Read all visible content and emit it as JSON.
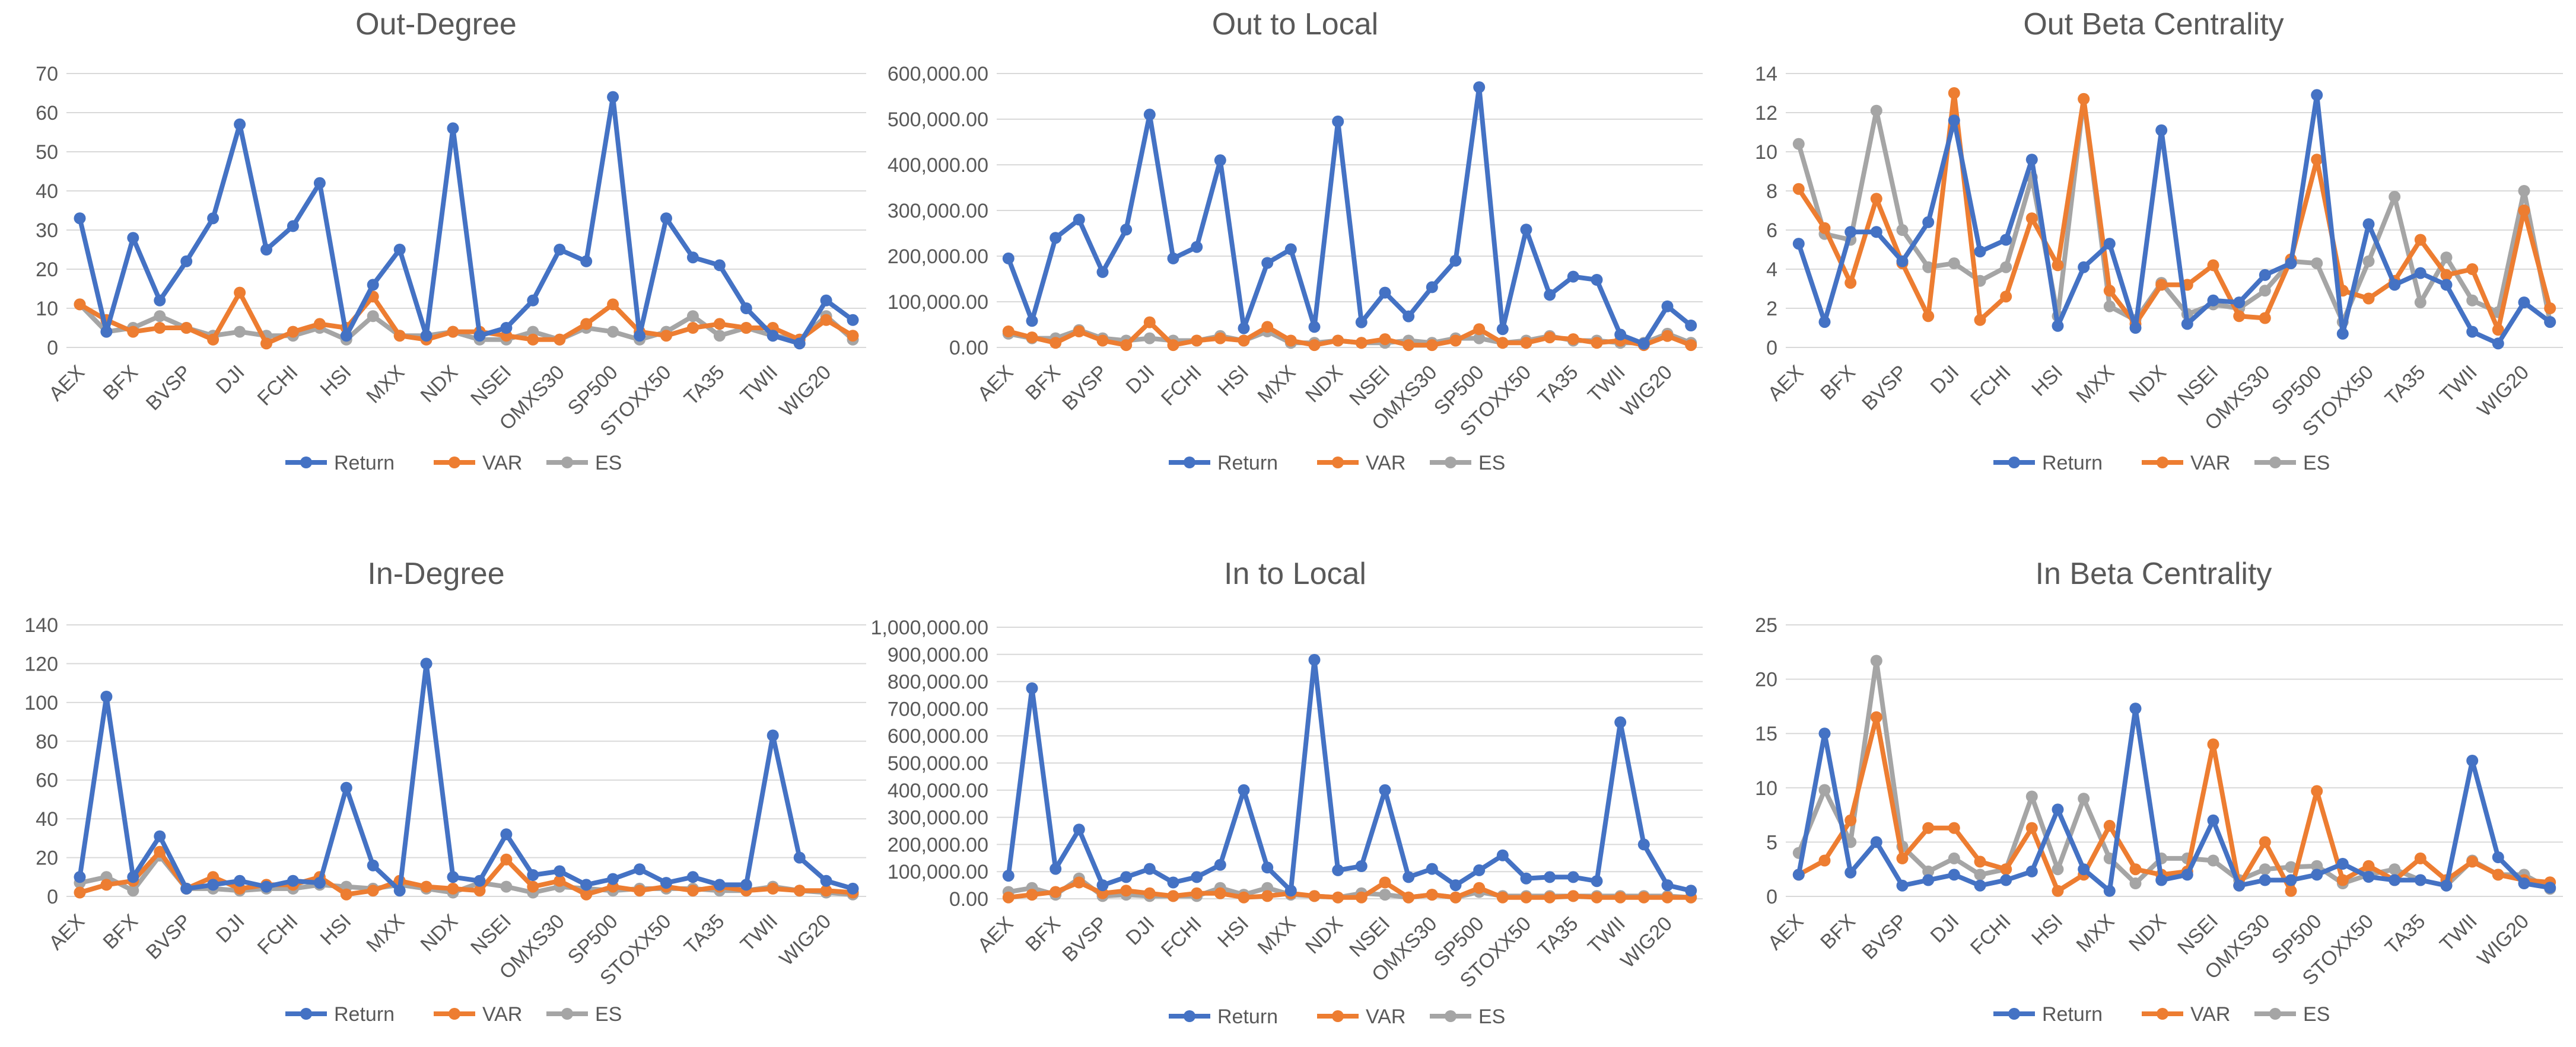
{
  "colors": {
    "Return": "#4472c4",
    "VAR": "#ed7d31",
    "ES": "#a5a5a5"
  },
  "chart_data": [
    {
      "type": "line",
      "title": "Out-Degree",
      "yticks": [
        "0",
        "10",
        "20",
        "30",
        "40",
        "50",
        "60",
        "70"
      ],
      "ylim": [
        0,
        70
      ],
      "xlabels": [
        "AEX",
        "BFX",
        "BVSP",
        "DJI",
        "FCHI",
        "HSI",
        "MXX",
        "NDX",
        "NSEI",
        "OMXS30",
        "SP500",
        "STOXX50",
        "TA35",
        "TWII",
        "WIG20"
      ],
      "n_points": 30,
      "legend": [
        "Return",
        "VAR",
        "ES"
      ],
      "series": [
        {
          "name": "Return",
          "values": [
            33,
            4,
            28,
            12,
            22,
            33,
            57,
            25,
            31,
            42,
            3,
            16,
            25,
            3,
            56,
            3,
            5,
            12,
            25,
            22,
            64,
            3,
            33,
            23,
            21,
            10,
            3,
            1,
            12,
            7
          ]
        },
        {
          "name": "VAR",
          "values": [
            11,
            7,
            4,
            5,
            5,
            2,
            14,
            1,
            4,
            6,
            5,
            13,
            3,
            2,
            4,
            4,
            3,
            2,
            2,
            6,
            11,
            4,
            3,
            5,
            6,
            5,
            5,
            2,
            7,
            3
          ]
        },
        {
          "name": "ES",
          "values": [
            11,
            4,
            5,
            8,
            5,
            3,
            4,
            3,
            3,
            5,
            2,
            8,
            3,
            3,
            4,
            2,
            2,
            4,
            2,
            5,
            4,
            2,
            4,
            8,
            3,
            5,
            3,
            2,
            8,
            2
          ]
        }
      ]
    },
    {
      "type": "line",
      "title": "Out to Local",
      "yticks": [
        "0.00",
        "100,000.00",
        "200,000.00",
        "300,000.00",
        "400,000.00",
        "500,000.00",
        "600,000.00"
      ],
      "ylim": [
        0,
        600000
      ],
      "xlabels": [
        "AEX",
        "BFX",
        "BVSP",
        "DJI",
        "FCHI",
        "HSI",
        "MXX",
        "NDX",
        "NSEI",
        "OMXS30",
        "SP500",
        "STOXX50",
        "TA35",
        "TWII",
        "WIG20"
      ],
      "n_points": 30,
      "legend": [
        "Return",
        "VAR",
        "ES"
      ],
      "series": [
        {
          "name": "Return",
          "values": [
            195000,
            58000,
            240000,
            280000,
            165000,
            258000,
            510000,
            195000,
            220000,
            410000,
            42000,
            185000,
            215000,
            45000,
            495000,
            55000,
            120000,
            68000,
            132000,
            190000,
            570000,
            40000,
            258000,
            115000,
            155000,
            148000,
            28000,
            8000,
            90000,
            48000
          ]
        },
        {
          "name": "VAR",
          "values": [
            35000,
            22000,
            10000,
            35000,
            15000,
            5000,
            55000,
            5000,
            15000,
            20000,
            15000,
            45000,
            15000,
            5000,
            15000,
            10000,
            18000,
            5000,
            5000,
            15000,
            40000,
            10000,
            10000,
            22000,
            18000,
            10000,
            15000,
            5000,
            25000,
            5000
          ]
        },
        {
          "name": "ES",
          "values": [
            30000,
            20000,
            20000,
            38000,
            20000,
            15000,
            20000,
            15000,
            15000,
            25000,
            15000,
            35000,
            10000,
            10000,
            15000,
            10000,
            10000,
            15000,
            10000,
            20000,
            20000,
            10000,
            15000,
            25000,
            15000,
            15000,
            10000,
            10000,
            30000,
            10000
          ]
        }
      ]
    },
    {
      "type": "line",
      "title": "Out Beta Centrality",
      "yticks": [
        "0",
        "2",
        "4",
        "6",
        "8",
        "10",
        "12",
        "14"
      ],
      "ylim": [
        0,
        14
      ],
      "xlabels": [
        "AEX",
        "BFX",
        "BVSP",
        "DJI",
        "FCHI",
        "HSI",
        "MXX",
        "NDX",
        "NSEI",
        "OMXS30",
        "SP500",
        "STOXX50",
        "TA35",
        "TWII",
        "WIG20"
      ],
      "n_points": 30,
      "legend": [
        "Return",
        "VAR",
        "ES"
      ],
      "series": [
        {
          "name": "Return",
          "values": [
            5.3,
            1.3,
            5.9,
            5.9,
            4.4,
            6.4,
            11.6,
            4.9,
            5.5,
            9.6,
            1.1,
            4.1,
            5.3,
            1.0,
            11.1,
            1.2,
            2.4,
            2.3,
            3.7,
            4.3,
            12.9,
            0.7,
            6.3,
            3.2,
            3.8,
            3.2,
            0.8,
            0.2,
            2.3,
            1.3
          ]
        },
        {
          "name": "VAR",
          "values": [
            8.1,
            6.1,
            3.3,
            7.6,
            4.3,
            1.6,
            13.0,
            1.4,
            2.6,
            6.6,
            4.2,
            12.7,
            2.9,
            1.2,
            3.2,
            3.2,
            4.2,
            1.6,
            1.5,
            4.5,
            9.6,
            2.9,
            2.5,
            3.4,
            5.5,
            3.7,
            4.0,
            0.9,
            7.0,
            2.0
          ]
        },
        {
          "name": "ES",
          "values": [
            10.4,
            5.8,
            5.5,
            12.1,
            6.0,
            4.1,
            4.3,
            3.4,
            4.1,
            8.7,
            1.6,
            12.7,
            2.1,
            1.4,
            3.3,
            1.7,
            2.2,
            2.0,
            2.9,
            4.4,
            4.3,
            1.3,
            4.4,
            7.7,
            2.3,
            4.6,
            2.4,
            1.8,
            8.0,
            1.3
          ]
        }
      ]
    },
    {
      "type": "line",
      "title": "In-Degree",
      "yticks": [
        "0",
        "20",
        "40",
        "60",
        "80",
        "100",
        "120",
        "140"
      ],
      "ylim": [
        0,
        140
      ],
      "xlabels": [
        "AEX",
        "BFX",
        "BVSP",
        "DJI",
        "FCHI",
        "HSI",
        "MXX",
        "NDX",
        "NSEI",
        "OMXS30",
        "SP500",
        "STOXX50",
        "TA35",
        "TWII",
        "WIG20"
      ],
      "n_points": 30,
      "legend": [
        "Return",
        "VAR",
        "ES"
      ],
      "series": [
        {
          "name": "Return",
          "values": [
            10,
            103,
            10,
            31,
            4,
            6,
            8,
            5,
            8,
            7,
            56,
            16,
            3,
            120,
            10,
            8,
            32,
            11,
            13,
            6,
            9,
            14,
            7,
            10,
            6,
            6,
            83,
            20,
            8,
            4
          ]
        },
        {
          "name": "VAR",
          "values": [
            2,
            6,
            8,
            23,
            4,
            10,
            4,
            6,
            6,
            10,
            1,
            3,
            8,
            5,
            4,
            3,
            19,
            5,
            8,
            1,
            5,
            3,
            5,
            3,
            5,
            3,
            4,
            3,
            3,
            2
          ]
        },
        {
          "name": "ES",
          "values": [
            7,
            10,
            3,
            21,
            4,
            4,
            3,
            4,
            4,
            6,
            5,
            4,
            6,
            4,
            2,
            7,
            5,
            2,
            5,
            4,
            3,
            4,
            4,
            4,
            3,
            3,
            5,
            3,
            2,
            1
          ]
        }
      ]
    },
    {
      "type": "line",
      "title": "In to Local",
      "yticks": [
        "0.00",
        "100,000.00",
        "200,000.00",
        "300,000.00",
        "400,000.00",
        "500,000.00",
        "600,000.00",
        "700,000.00",
        "800,000.00",
        "900,000.00",
        "1,000,000.00"
      ],
      "ylim": [
        0,
        1000000
      ],
      "xlabels": [
        "AEX",
        "BFX",
        "BVSP",
        "DJI",
        "FCHI",
        "HSI",
        "MXX",
        "NDX",
        "NSEI",
        "OMXS30",
        "SP500",
        "STOXX50",
        "TA35",
        "TWII",
        "WIG20"
      ],
      "n_points": 30,
      "legend": [
        "Return",
        "VAR",
        "ES"
      ],
      "series": [
        {
          "name": "Return",
          "values": [
            85000,
            775000,
            110000,
            255000,
            50000,
            80000,
            110000,
            60000,
            80000,
            125000,
            400000,
            115000,
            30000,
            880000,
            105000,
            120000,
            400000,
            80000,
            110000,
            50000,
            105000,
            160000,
            75000,
            80000,
            80000,
            65000,
            650000,
            200000,
            50000,
            30000
          ]
        },
        {
          "name": "VAR",
          "values": [
            5000,
            15000,
            25000,
            60000,
            20000,
            30000,
            20000,
            10000,
            20000,
            20000,
            5000,
            10000,
            20000,
            10000,
            5000,
            5000,
            60000,
            5000,
            15000,
            5000,
            40000,
            5000,
            5000,
            5000,
            10000,
            5000,
            5000,
            5000,
            5000,
            5000
          ]
        },
        {
          "name": "ES",
          "values": [
            25000,
            40000,
            15000,
            75000,
            10000,
            15000,
            10000,
            10000,
            10000,
            40000,
            15000,
            40000,
            15000,
            10000,
            5000,
            20000,
            15000,
            5000,
            15000,
            5000,
            25000,
            10000,
            10000,
            10000,
            10000,
            10000,
            10000,
            10000,
            10000,
            5000
          ]
        }
      ]
    },
    {
      "type": "line",
      "title": "In Beta Centrality",
      "yticks": [
        "0",
        "5",
        "10",
        "15",
        "20",
        "25"
      ],
      "ylim": [
        0,
        25
      ],
      "xlabels": [
        "AEX",
        "BFX",
        "BVSP",
        "DJI",
        "FCHI",
        "HSI",
        "MXX",
        "NDX",
        "NSEI",
        "OMXS30",
        "SP500",
        "STOXX50",
        "TA35",
        "TWII",
        "WIG20"
      ],
      "n_points": 30,
      "legend": [
        "Return",
        "VAR",
        "ES"
      ],
      "series": [
        {
          "name": "Return",
          "values": [
            2.0,
            15.0,
            2.2,
            5.0,
            1.0,
            1.5,
            2.0,
            1.0,
            1.5,
            2.3,
            8.0,
            2.5,
            0.5,
            17.3,
            1.5,
            2.0,
            7.0,
            1.0,
            1.5,
            1.5,
            2.0,
            3.0,
            1.8,
            1.5,
            1.5,
            1.0,
            12.5,
            3.6,
            1.2,
            0.8
          ]
        },
        {
          "name": "VAR",
          "values": [
            2.0,
            3.3,
            7.0,
            16.5,
            3.5,
            6.3,
            6.3,
            3.2,
            2.5,
            6.3,
            0.5,
            2.0,
            6.5,
            2.5,
            2.0,
            2.3,
            14.0,
            1.0,
            5.0,
            0.5,
            9.7,
            1.5,
            2.8,
            1.5,
            3.5,
            1.5,
            3.2,
            2.0,
            1.5,
            1.3
          ]
        },
        {
          "name": "ES",
          "values": [
            4.0,
            9.8,
            5.0,
            21.7,
            4.6,
            2.3,
            3.5,
            2.0,
            2.5,
            9.2,
            2.5,
            9.0,
            3.5,
            1.2,
            3.5,
            3.5,
            3.3,
            1.5,
            2.5,
            2.7,
            2.8,
            1.2,
            2.0,
            2.5,
            1.5,
            1.0,
            3.3,
            2.0,
            2.0,
            0.7
          ]
        }
      ]
    }
  ]
}
